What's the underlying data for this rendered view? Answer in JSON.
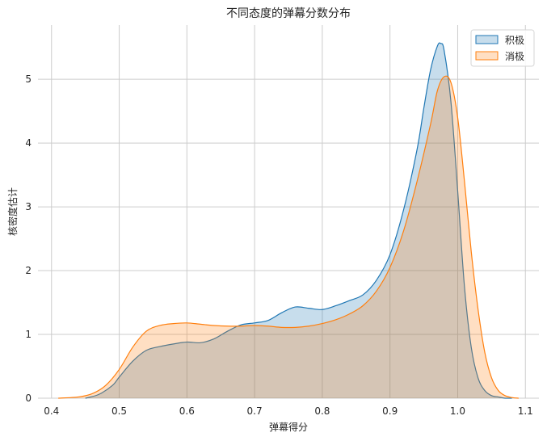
{
  "chart_data": {
    "type": "area",
    "title": "不同态度的弹幕分数分布",
    "xlabel": "弹幕得分",
    "ylabel": "核密度估计",
    "xlim": [
      0.38,
      1.12
    ],
    "ylim": [
      0,
      5.85
    ],
    "xticks": [
      0.4,
      0.5,
      0.6,
      0.7,
      0.8,
      0.9,
      1.0,
      1.1
    ],
    "xtick_labels": [
      "0.4",
      "0.5",
      "0.6",
      "0.7",
      "0.8",
      "0.9",
      "1.0",
      "1.1"
    ],
    "yticks": [
      0,
      1,
      2,
      3,
      4,
      5
    ],
    "ytick_labels": [
      "0",
      "1",
      "2",
      "3",
      "4",
      "5"
    ],
    "grid": true,
    "legend_position": "top-right",
    "series": [
      {
        "name": "积极",
        "color": "#1f77b4",
        "x": [
          0.45,
          0.47,
          0.49,
          0.5,
          0.52,
          0.54,
          0.56,
          0.58,
          0.6,
          0.62,
          0.64,
          0.66,
          0.68,
          0.7,
          0.72,
          0.74,
          0.76,
          0.78,
          0.8,
          0.82,
          0.84,
          0.86,
          0.88,
          0.9,
          0.92,
          0.94,
          0.95,
          0.96,
          0.97,
          0.975,
          0.98,
          0.99,
          1.0,
          1.01,
          1.02,
          1.03,
          1.04,
          1.05,
          1.06,
          1.07,
          1.08
        ],
        "y": [
          0.0,
          0.06,
          0.2,
          0.33,
          0.58,
          0.75,
          0.81,
          0.85,
          0.88,
          0.87,
          0.93,
          1.05,
          1.15,
          1.18,
          1.22,
          1.34,
          1.43,
          1.41,
          1.39,
          1.45,
          1.53,
          1.62,
          1.85,
          2.25,
          2.95,
          3.9,
          4.55,
          5.15,
          5.52,
          5.56,
          5.45,
          4.65,
          3.25,
          1.75,
          0.8,
          0.32,
          0.12,
          0.04,
          0.02,
          0.0,
          0.0
        ]
      },
      {
        "name": "消极",
        "color": "#ff7f0e",
        "x": [
          0.41,
          0.44,
          0.46,
          0.48,
          0.5,
          0.52,
          0.54,
          0.56,
          0.58,
          0.6,
          0.62,
          0.64,
          0.66,
          0.68,
          0.7,
          0.72,
          0.74,
          0.76,
          0.78,
          0.8,
          0.82,
          0.84,
          0.86,
          0.88,
          0.9,
          0.92,
          0.94,
          0.96,
          0.97,
          0.98,
          0.99,
          1.0,
          1.01,
          1.02,
          1.03,
          1.04,
          1.05,
          1.06,
          1.07,
          1.08,
          1.09
        ],
        "y": [
          0.0,
          0.02,
          0.07,
          0.2,
          0.45,
          0.8,
          1.05,
          1.14,
          1.17,
          1.18,
          1.16,
          1.14,
          1.13,
          1.13,
          1.14,
          1.13,
          1.11,
          1.11,
          1.13,
          1.17,
          1.23,
          1.32,
          1.45,
          1.68,
          2.05,
          2.62,
          3.4,
          4.3,
          4.82,
          5.04,
          4.95,
          4.4,
          3.4,
          2.3,
          1.4,
          0.72,
          0.32,
          0.12,
          0.04,
          0.01,
          0.0
        ]
      }
    ]
  }
}
